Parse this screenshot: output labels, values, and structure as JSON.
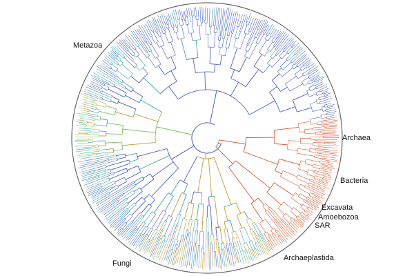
{
  "diagram": {
    "type": "circular-phylogenetic-tree",
    "groups": [
      {
        "id": "metazoa",
        "label": "Metazoa",
        "color": "#5a6fc4"
      },
      {
        "id": "archaea",
        "label": "Archaea",
        "color": "#d9572e"
      },
      {
        "id": "bacteria",
        "label": "Bacteria",
        "color": "#d9572e"
      },
      {
        "id": "excavata",
        "label": "Excavata",
        "color": "#c9822a"
      },
      {
        "id": "amoebozoa",
        "label": "Amoebozoa",
        "color": "#6fb2d9"
      },
      {
        "id": "sar",
        "label": "SAR",
        "color": "#4f6ec2"
      },
      {
        "id": "archaeplastida",
        "label": "Archaeplastida",
        "color": "#b88a2c"
      },
      {
        "id": "fungi",
        "label": "Fungi",
        "color": "#7ac36a"
      }
    ],
    "palette": {
      "outer_circle": "#555555",
      "blue": "#4a5fc1",
      "teal": "#3aa6b0",
      "green": "#78c25a",
      "orange": "#d9572e",
      "gold": "#c49a2a"
    }
  }
}
